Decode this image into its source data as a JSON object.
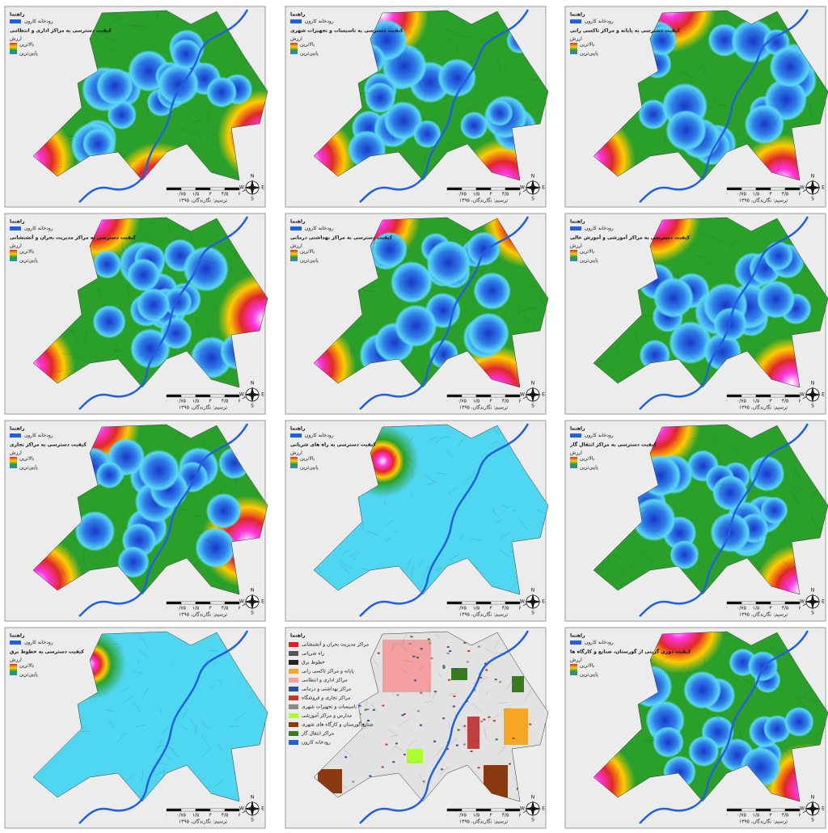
{
  "common": {
    "legend_heading": "راهنما",
    "river": "رودخانه کارون",
    "value_label": "ارزش",
    "high": "بالاترین",
    "low": "پایین‌ترین",
    "scale_unit": "کیلومتر",
    "scale_ticks": [
      "۰",
      "۰/۷۵",
      "۱/۵",
      "۳",
      "۴/۵",
      "۶"
    ],
    "credit": "ترسیم: نگارندگان، ۱۳۹۵",
    "compass": {
      "n": "N",
      "e": "E",
      "s": "S",
      "w": "W"
    }
  },
  "panels": [
    {
      "title": "کیفیت دسترسی به مراکز اداری و انتظامی"
    },
    {
      "title": "کیفیت دسترسی به تاسیسات و تجهیزات شهری"
    },
    {
      "title": "کیفیت دسترسی به پایانه و مراکز تاکسی رانی"
    },
    {
      "title": "کیفیت دسترسی به مراکز مدیریت بحران و آتشنشانی"
    },
    {
      "title": "کیفیت دسترسی به مراکز بهداشتی درمانی"
    },
    {
      "title": "کیفیت دسترسی به مراکز آموزشی و آموزش عالی"
    },
    {
      "title": "کیفیت دسترسی به مراکز تجاری"
    },
    {
      "title": "کیفیت دسترسی به راه های شریانی"
    },
    {
      "title": "کیفیت دسترسی به مراکز انتقال گاز"
    },
    {
      "title": "کیفیت دسترسی به خطوط برق"
    },
    {
      "items": [
        {
          "label": "مراکز مدیریت بحران و آتشنشانی",
          "color": "#e02020"
        },
        {
          "label": "راه شریانی",
          "color": "#555555"
        },
        {
          "label": "خطوط برق",
          "color": "#222222"
        },
        {
          "label": "پایانه و مراکز تاکسی رانی",
          "color": "#f5a623"
        },
        {
          "label": "مراکز اداری و انتظامی",
          "color": "#f4a0a0"
        },
        {
          "label": "مراکز بهداشتی و درمانی",
          "color": "#2a4fa8"
        },
        {
          "label": "مراکز تجاری و فروشگاه",
          "color": "#c0392b"
        },
        {
          "label": "تاسیسات و تجهیزات شهری",
          "color": "#8a8a8a"
        },
        {
          "label": "مدارس و مراکز آموزشی",
          "color": "#adff2f"
        },
        {
          "label": "صنایع گورستان و کارگاه های شهری",
          "color": "#8b3a0f"
        },
        {
          "label": "مراکز انتقال گاز",
          "color": "#3a7a1e"
        },
        {
          "label": "رودخانه کارون",
          "color": "#2060e0"
        }
      ]
    },
    {
      "title": "کیفیت دوری گزینی از گورستان، صنایع و کارگاه ها"
    }
  ]
}
